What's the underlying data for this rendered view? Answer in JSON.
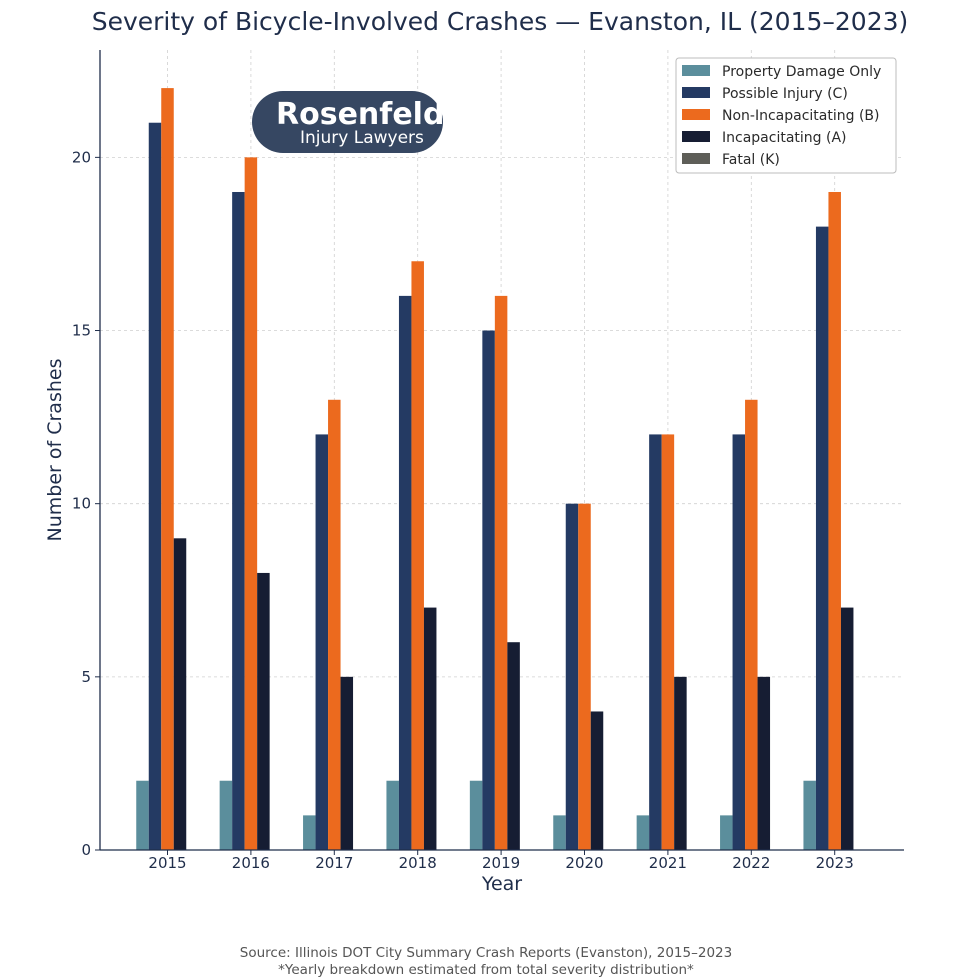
{
  "chart_data": {
    "type": "bar",
    "title": "Severity of Bicycle-Involved Crashes — Evanston, IL (2015–2023)",
    "xlabel": "Year",
    "ylabel": "Number of Crashes",
    "ylim": [
      0,
      23.1
    ],
    "yticks": [
      0,
      5,
      10,
      15,
      20
    ],
    "grid": true,
    "legend_position": "top-right",
    "categories": [
      "2015",
      "2016",
      "2017",
      "2018",
      "2019",
      "2020",
      "2021",
      "2022",
      "2023"
    ],
    "series": [
      {
        "name": "Property Damage Only",
        "color": "#5b8e9c",
        "values": [
          2,
          2,
          1,
          2,
          2,
          1,
          1,
          1,
          2
        ]
      },
      {
        "name": "Possible Injury (C)",
        "color": "#243a63",
        "values": [
          21,
          19,
          12,
          16,
          15,
          10,
          12,
          12,
          18
        ]
      },
      {
        "name": "Non-Incapacitating (B)",
        "color": "#ec6a1e",
        "values": [
          22,
          20,
          13,
          17,
          16,
          10,
          12,
          13,
          19
        ]
      },
      {
        "name": "Incapacitating (A)",
        "color": "#161d33",
        "values": [
          9,
          8,
          5,
          7,
          6,
          4,
          5,
          5,
          7
        ]
      },
      {
        "name": "Fatal (K)",
        "color": "#5e5e58",
        "values": [
          0,
          0,
          0,
          0,
          0,
          0,
          0,
          0,
          0
        ]
      }
    ]
  },
  "logo": {
    "brand": "Rosenfeld",
    "tagline": "Injury Lawyers",
    "bg_color": "#364762"
  },
  "source": {
    "line1": "Source: Illinois DOT City Summary Crash Reports (Evanston), 2015–2023",
    "line2": "*Yearly breakdown estimated from total severity distribution*"
  }
}
